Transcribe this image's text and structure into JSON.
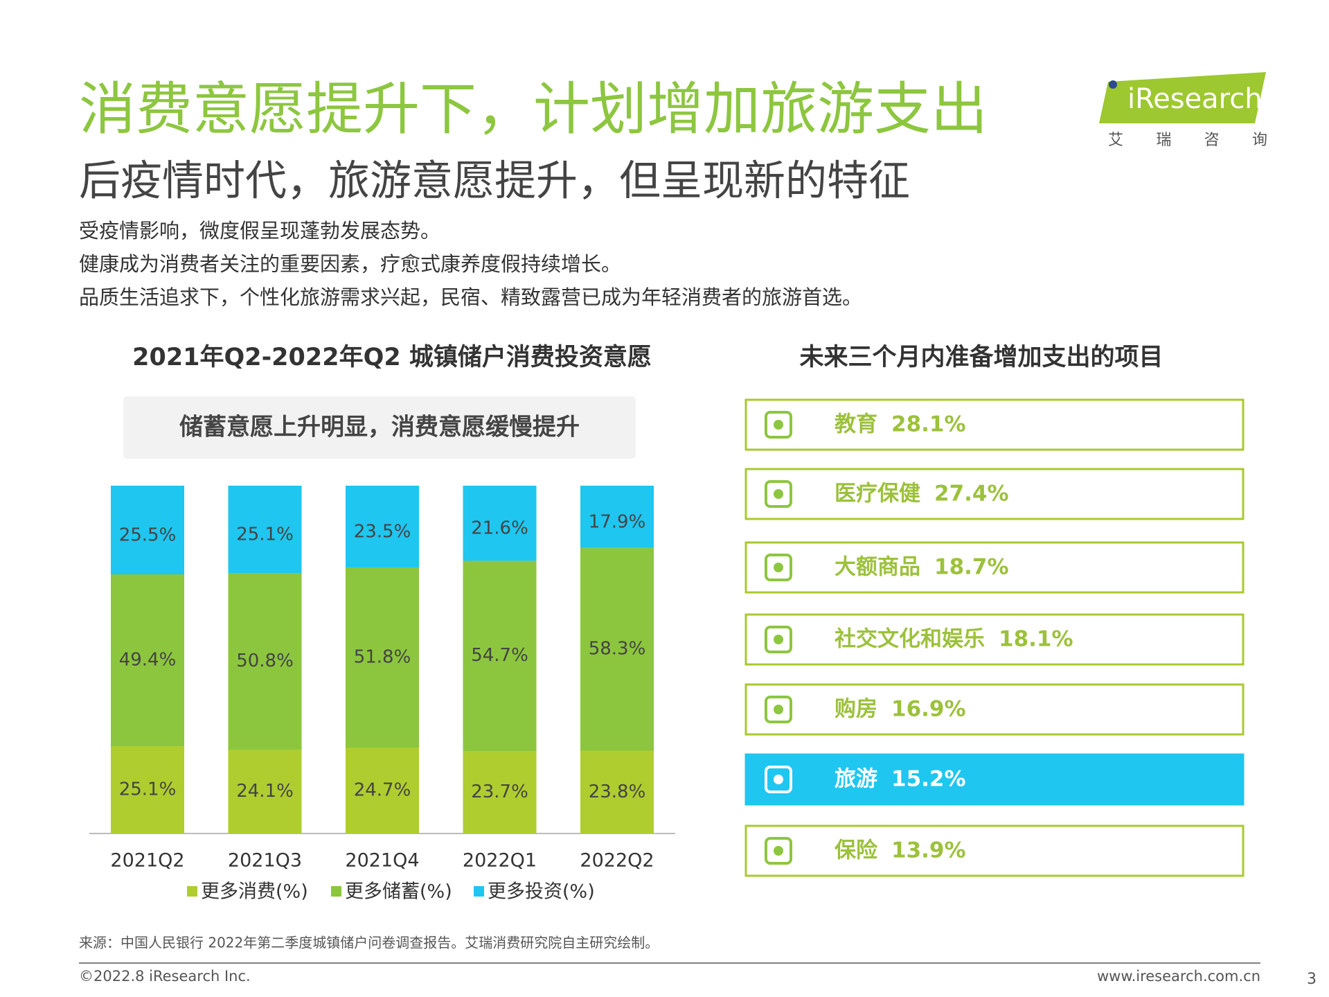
{
  "logo": {
    "brand": "iResearch",
    "sub": "艾 瑞 咨 询"
  },
  "header": {
    "title": "消费意愿提升下，计划增加旅游支出",
    "subtitle": "后疫情时代，旅游意愿提升，但呈现新的特征",
    "bullets": [
      "受疫情影响，微度假呈现蓬勃发展态势。",
      "健康成为消费者关注的重要因素，疗愈式康养度假持续增长。",
      "品质生活追求下，个性化旅游需求兴起，民宿、精致露营已成为年轻消费者的旅游首选。"
    ]
  },
  "chart_data": {
    "type": "stacked_bar",
    "title": "2021年Q2-2022年Q2 城镇储户消费投资意愿",
    "subtitle": "储蓄意愿上升明显，消费意愿缓慢提升",
    "categories": [
      "2021Q2",
      "2021Q3",
      "2021Q4",
      "2022Q1",
      "2022Q2"
    ],
    "ylim": [
      0,
      100
    ],
    "series": [
      {
        "name": "更多消费(%)",
        "color": "#afcd2f",
        "values": [
          25.1,
          24.1,
          24.7,
          23.7,
          23.8
        ],
        "value_labels": [
          "25.1%",
          "24.1%",
          "24.7%",
          "23.7%",
          "23.8%"
        ]
      },
      {
        "name": "更多储蓄(%)",
        "color": "#8cc63e",
        "values": [
          49.4,
          50.8,
          51.8,
          54.7,
          58.3
        ],
        "value_labels": [
          "49.4%",
          "50.8%",
          "51.8%",
          "54.7%",
          "58.3%"
        ]
      },
      {
        "name": "更多投资(%)",
        "color": "#1fc6f0",
        "values": [
          25.5,
          25.1,
          23.5,
          21.6,
          17.9
        ],
        "value_labels": [
          "25.5%",
          "25.1%",
          "23.5%",
          "21.6%",
          "17.9%"
        ]
      }
    ]
  },
  "panel": {
    "title": "未来三个月内准备增加支出的项目",
    "items": [
      {
        "name": "教育",
        "share": "28.1%"
      },
      {
        "name": "医疗保健",
        "share": "27.4%"
      },
      {
        "name": "大额商品",
        "share": "18.7%"
      },
      {
        "name": "社交文化和娱乐",
        "share": "18.1%"
      },
      {
        "name": "购房",
        "share": "16.9%"
      },
      {
        "name": "旅游",
        "share": "15.2%",
        "highlighted": true
      },
      {
        "name": "保险",
        "share": "13.9%"
      }
    ]
  },
  "footer": {
    "source": "来源：中国人民银行 2022年第二季度城镇储户问卷调查报告。艾瑞消费研究院自主研究绘制。",
    "copyright": "©2022.8 iResearch Inc.",
    "url": "www.iresearch.com.cn",
    "page": "3"
  }
}
